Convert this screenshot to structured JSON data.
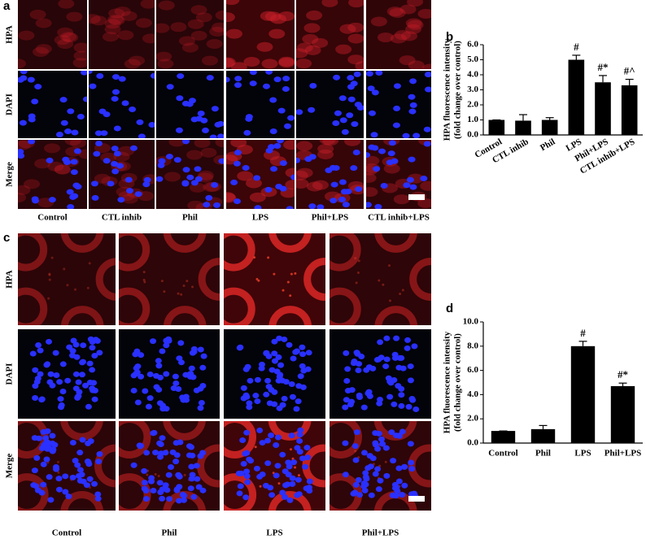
{
  "panels": [
    {
      "label": "a",
      "row_labels": [
        "HPA",
        "DAPI",
        "Merge"
      ],
      "column_labels": [
        "Control",
        "CTL inhib",
        "Phil",
        "LPS",
        "Phil+LPS",
        "CTL inhib+LPS"
      ]
    },
    {
      "label": "c",
      "row_labels": [
        "HPA",
        "DAPI",
        "Merge"
      ],
      "column_labels": [
        "Control",
        "Phil",
        "LPS",
        "Phil+LPS"
      ]
    }
  ],
  "chart_data": [
    {
      "type": "bar",
      "panel_label": "b",
      "y_label": [
        "HPA fluorescence intensity",
        "(fold change over control)"
      ],
      "categories": [
        "Control",
        "CTL inhib",
        "Phil",
        "LPS",
        "Phil+LPS",
        "CTL inhib+LPS"
      ],
      "values": [
        1.0,
        0.95,
        1.0,
        5.0,
        3.5,
        3.3
      ],
      "errors": [
        0,
        0.4,
        0.15,
        0.3,
        0.45,
        0.4
      ],
      "annotations": [
        null,
        null,
        null,
        "#",
        "#*",
        "#^"
      ],
      "color": "#000000",
      "label_rotation": -30,
      "ylim": [
        0,
        6
      ],
      "yticks": [
        {
          "value": 0,
          "label": "0.0"
        },
        {
          "value": 1,
          "label": "1.0"
        },
        {
          "value": 2,
          "label": "2.0"
        },
        {
          "value": 3,
          "label": "3.0"
        },
        {
          "value": 4,
          "label": "4.0"
        },
        {
          "value": 5,
          "label": "5.0"
        },
        {
          "value": 6,
          "label": "6.0"
        }
      ]
    },
    {
      "type": "bar",
      "panel_label": "d",
      "y_label": [
        "HPA fluorescence intensity",
        "(fold change over control)"
      ],
      "categories": [
        "Control",
        "Phil",
        "LPS",
        "Phil+LPS"
      ],
      "values": [
        1.0,
        1.15,
        8.0,
        4.7
      ],
      "errors": [
        0,
        0.3,
        0.4,
        0.25
      ],
      "annotations": [
        null,
        null,
        "#",
        "#*"
      ],
      "color": "#000000",
      "label_rotation": 0,
      "ylim": [
        0,
        10
      ],
      "yticks": [
        {
          "value": 0,
          "label": "0.0"
        },
        {
          "value": 2,
          "label": "2.0"
        },
        {
          "value": 4,
          "label": "4.0"
        },
        {
          "value": 6,
          "label": "6.0"
        },
        {
          "value": 8,
          "label": "8.0"
        },
        {
          "value": 10,
          "label": "10.0"
        }
      ]
    }
  ]
}
